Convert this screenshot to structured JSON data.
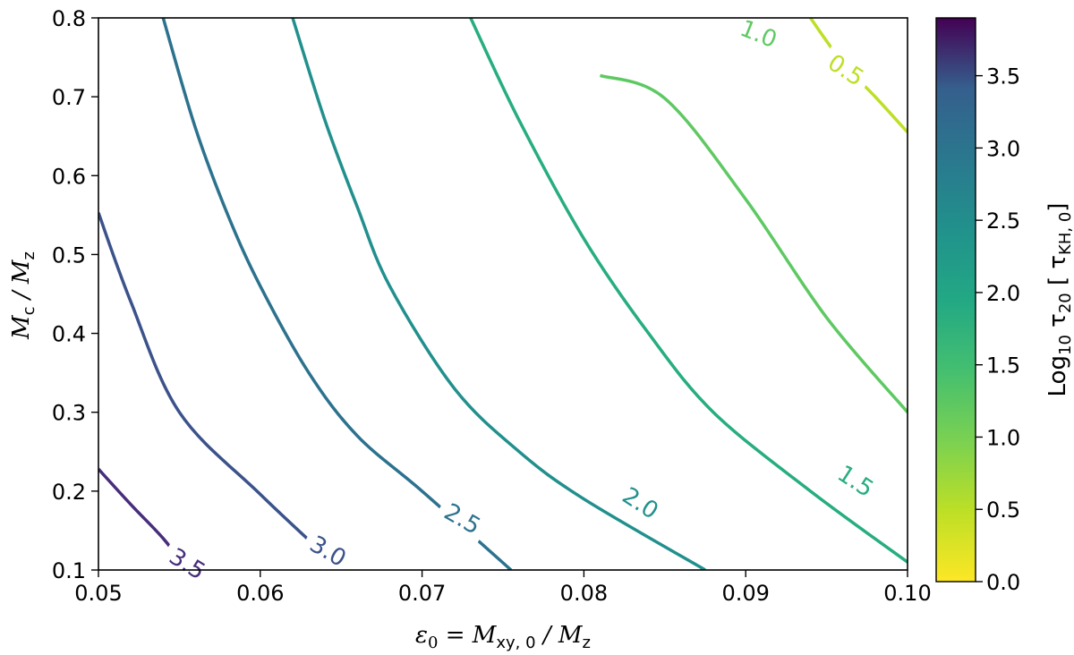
{
  "chart_data": {
    "type": "contour",
    "x_label": {
      "symbol": "ε",
      "sub0": "0",
      "eq": " = M",
      "sub1": "xy, 0",
      "mid": " / M",
      "sub2": "z"
    },
    "y_label": {
      "m1": "M",
      "s1": "c",
      "mid": " / M",
      "s2": "z"
    },
    "colorbar_label": {
      "pre": "Log",
      "s1": "10",
      "tau": " τ",
      "s2": "20",
      "open": " [ τ",
      "s3": "KH, 0",
      "close": "]"
    },
    "xlim": [
      0.05,
      0.1
    ],
    "ylim": [
      0.1,
      0.8
    ],
    "x_ticks": [
      "0.05",
      "0.06",
      "0.07",
      "0.08",
      "0.09",
      "0.10"
    ],
    "y_ticks": [
      "0.1",
      "0.2",
      "0.3",
      "0.4",
      "0.5",
      "0.6",
      "0.7",
      "0.8"
    ],
    "colorbar_range": [
      0.0,
      3.9
    ],
    "colorbar_ticks": [
      "0.0",
      "0.5",
      "1.0",
      "1.5",
      "2.0",
      "2.5",
      "3.0",
      "3.5"
    ],
    "colormap": "viridis_r",
    "contours": [
      {
        "level": 3.5,
        "label": "3.5",
        "color": "#472d7b",
        "points": [
          [
            0.05,
            0.228
          ],
          [
            0.052,
            0.183
          ],
          [
            0.054,
            0.14
          ],
          [
            0.0555,
            0.1
          ]
        ]
      },
      {
        "level": 3.0,
        "label": "3.0",
        "color": "#3b528b",
        "points": [
          [
            0.05,
            0.553
          ],
          [
            0.052,
            0.44
          ],
          [
            0.055,
            0.3
          ],
          [
            0.06,
            0.196
          ],
          [
            0.065,
            0.1
          ]
        ]
      },
      {
        "level": 2.5,
        "label": "2.5",
        "color": "#2c728e",
        "points": [
          [
            0.054,
            0.8
          ],
          [
            0.056,
            0.66
          ],
          [
            0.058,
            0.55
          ],
          [
            0.06,
            0.46
          ],
          [
            0.063,
            0.35
          ],
          [
            0.066,
            0.27
          ],
          [
            0.07,
            0.2
          ],
          [
            0.0755,
            0.1
          ]
        ]
      },
      {
        "level": 2.0,
        "label": "2.0",
        "color": "#21908d",
        "points": [
          [
            0.062,
            0.8
          ],
          [
            0.064,
            0.67
          ],
          [
            0.066,
            0.56
          ],
          [
            0.068,
            0.46
          ],
          [
            0.072,
            0.33
          ],
          [
            0.076,
            0.25
          ],
          [
            0.08,
            0.19
          ],
          [
            0.0875,
            0.1
          ]
        ]
      },
      {
        "level": 1.5,
        "label": "1.5",
        "color": "#27ad81",
        "points": [
          [
            0.073,
            0.8
          ],
          [
            0.076,
            0.67
          ],
          [
            0.08,
            0.52
          ],
          [
            0.084,
            0.4
          ],
          [
            0.088,
            0.3
          ],
          [
            0.094,
            0.2
          ],
          [
            0.1,
            0.11
          ]
        ]
      },
      {
        "level": 1.0,
        "label": "1.0",
        "color": "#5ec962",
        "points": [
          [
            0.081,
            0.727
          ],
          [
            0.085,
            0.698
          ],
          [
            0.09,
            0.57
          ],
          [
            0.095,
            0.42
          ],
          [
            0.1,
            0.3
          ]
        ]
      },
      {
        "level": 0.5,
        "label": "0.5",
        "color": "#bddf26",
        "points": [
          [
            0.094,
            0.8
          ],
          [
            0.096,
            0.743
          ],
          [
            0.098,
            0.7
          ],
          [
            0.1,
            0.655
          ]
        ]
      }
    ],
    "label_positions": [
      {
        "label": "3.5",
        "x": 0.0555,
        "y": 0.108,
        "angle": 32
      },
      {
        "label": "3.0",
        "x": 0.0642,
        "y": 0.124,
        "angle": 30
      },
      {
        "label": "2.5",
        "x": 0.0725,
        "y": 0.165,
        "angle": 30
      },
      {
        "label": "2.0",
        "x": 0.0835,
        "y": 0.185,
        "angle": 33
      },
      {
        "label": "1.5",
        "x": 0.0968,
        "y": 0.213,
        "angle": 33
      },
      {
        "label": "1.0",
        "x": 0.0908,
        "y": 0.78,
        "angle": 22
      },
      {
        "label": "0.5",
        "x": 0.0962,
        "y": 0.734,
        "angle": 33
      }
    ]
  }
}
